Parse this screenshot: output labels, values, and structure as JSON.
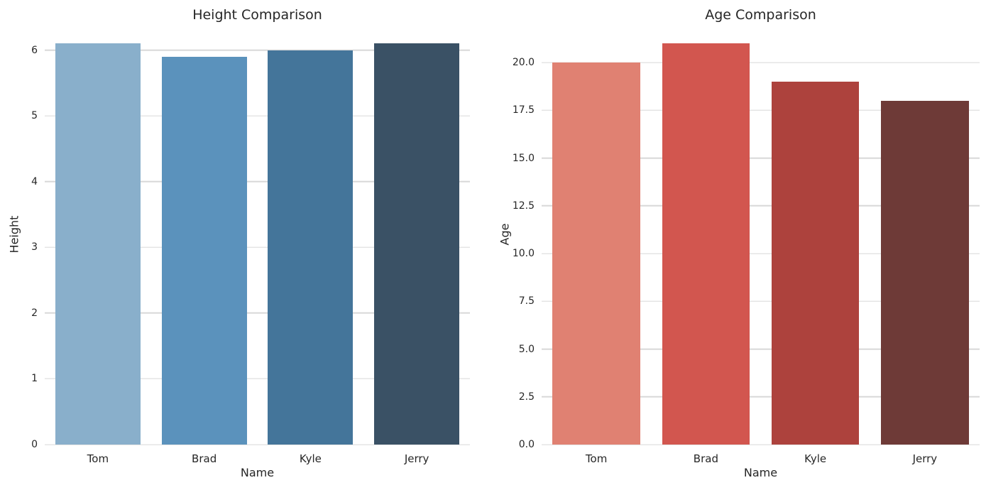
{
  "figure": {
    "background_color": "#ffffff",
    "text_color": "#262626",
    "grid_color": "#d8d8d8"
  },
  "chart_data": [
    {
      "type": "bar",
      "title": "Height Comparison",
      "xlabel": "Name",
      "ylabel": "Height",
      "categories": [
        "Tom",
        "Brad",
        "Kyle",
        "Jerry"
      ],
      "values": [
        6.1,
        5.9,
        6.0,
        6.1
      ],
      "ylim": [
        0,
        6.405
      ],
      "yticks": [
        0,
        1,
        2,
        3,
        4,
        5,
        6
      ],
      "ytick_labels": [
        "0",
        "1",
        "2",
        "3",
        "4",
        "5",
        "6"
      ],
      "bar_colors": [
        "#89afcb",
        "#5b92bc",
        "#44759a",
        "#3a5165"
      ],
      "bar_width_fraction": 0.8,
      "grid": true,
      "legend": null
    },
    {
      "type": "bar",
      "title": "Age Comparison",
      "xlabel": "Name",
      "ylabel": "Age",
      "categories": [
        "Tom",
        "Brad",
        "Kyle",
        "Jerry"
      ],
      "values": [
        20,
        21,
        19,
        18
      ],
      "ylim": [
        0,
        22.05
      ],
      "yticks": [
        0,
        2.5,
        5,
        7.5,
        10,
        12.5,
        15,
        17.5,
        20
      ],
      "ytick_labels": [
        "0.0",
        "2.5",
        "5.0",
        "7.5",
        "10.0",
        "12.5",
        "15.0",
        "17.5",
        "20.0"
      ],
      "bar_colors": [
        "#e08172",
        "#d2564f",
        "#ad423d",
        "#6e3a37"
      ],
      "bar_width_fraction": 0.8,
      "grid": true,
      "legend": null
    }
  ]
}
